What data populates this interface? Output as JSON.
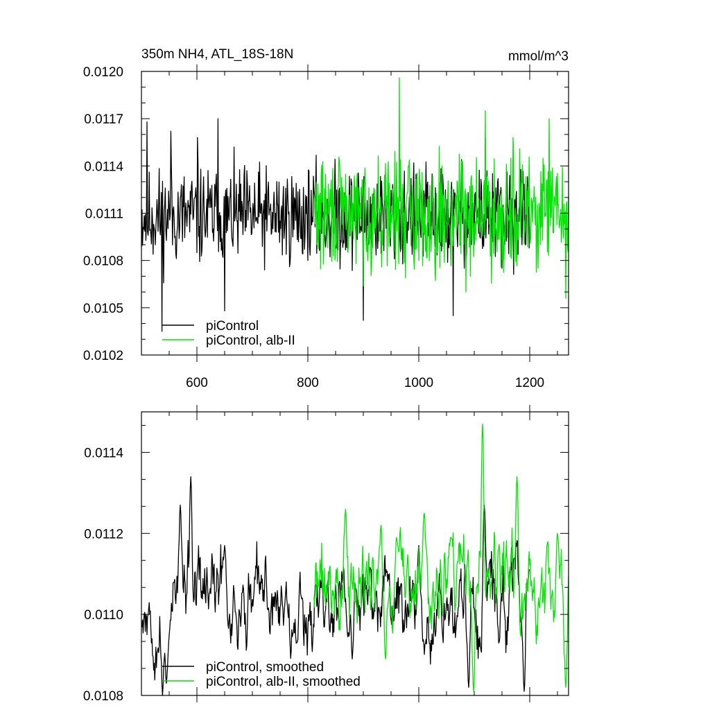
{
  "colors": {
    "series_a": "#000000",
    "series_b": "#00e600",
    "frame": "#000000"
  },
  "chart_data": [
    {
      "type": "line",
      "title": "350m NH4, ATL_18S-18N",
      "units": "mmol/m^3",
      "xlim": [
        500,
        1270
      ],
      "ylim": [
        0.0102,
        0.012
      ],
      "x_tick_values": [
        600,
        800,
        1000,
        1200
      ],
      "x_tick_labels": [
        "600",
        "800",
        "1000",
        "1200"
      ],
      "y_tick_values": [
        0.0102,
        0.0105,
        0.0108,
        0.0111,
        0.0114,
        0.0117,
        0.012
      ],
      "y_tick_labels": [
        "0.0102",
        "0.0105",
        "0.0108",
        "0.0111",
        "0.0114",
        "0.0117",
        "0.0120"
      ],
      "legend_position": "bottom-left",
      "series": [
        {
          "name": "piControl",
          "color": "#000000",
          "x_range": [
            500,
            1199
          ],
          "mean": 0.01108,
          "amplitude": 0.00022,
          "seed": 11,
          "spikes": [
            [
              510,
              0.01168
            ],
            [
              537,
              0.01035
            ],
            [
              553,
              0.01162
            ],
            [
              601,
              0.01158
            ],
            [
              638,
              0.0117
            ],
            [
              650,
              0.01048
            ],
            [
              800,
              0.0108
            ],
            [
              900,
              0.01042
            ],
            [
              1062,
              0.01045
            ],
            [
              1120,
              0.01158
            ],
            [
              1150,
              0.01075
            ]
          ]
        },
        {
          "name": "piControl, alb-II",
          "color": "#00e600",
          "x_range": [
            811,
            1270
          ],
          "mean": 0.0111,
          "amplitude": 0.00025,
          "seed": 29,
          "spikes": [
            [
              965,
              0.01196
            ],
            [
              1120,
              0.01175
            ],
            [
              1235,
              0.0117
            ],
            [
              1170,
              0.01158
            ],
            [
              1085,
              0.0106
            ],
            [
              1265,
              0.01056
            ]
          ]
        }
      ]
    },
    {
      "type": "line",
      "xlim": [
        500,
        1270
      ],
      "ylim": [
        0.0108,
        0.0115
      ],
      "y_tick_values": [
        0.0108,
        0.011,
        0.0112,
        0.0114
      ],
      "y_tick_labels": [
        "0.0108",
        "0.0110",
        "0.0112",
        "0.0114"
      ],
      "legend_position": "bottom-left",
      "series": [
        {
          "name": "piControl, smoothed",
          "color": "#000000",
          "x_range": [
            500,
            1199
          ],
          "mean": 0.01103,
          "amplitude": 0.00014,
          "seed": 53,
          "spikes": [
            [
              538,
              0.0108
            ],
            [
              545,
              0.01083
            ],
            [
              570,
              0.01127
            ],
            [
              589,
              0.01134
            ],
            [
              650,
              0.01117
            ],
            [
              1000,
              0.01117
            ],
            [
              1090,
              0.01082
            ],
            [
              1118,
              0.01127
            ],
            [
              1190,
              0.01081
            ],
            [
              780,
              0.01093
            ],
            [
              880,
              0.01089
            ]
          ]
        },
        {
          "name": "piControl, alb-II, smoothed",
          "color": "#00e600",
          "x_range": [
            811,
            1270
          ],
          "mean": 0.01106,
          "amplitude": 0.00015,
          "seed": 71,
          "spikes": [
            [
              868,
              0.01126
            ],
            [
              932,
              0.01122
            ],
            [
              960,
              0.01119
            ],
            [
              1010,
              0.01125
            ],
            [
              1058,
              0.01119
            ],
            [
              1115,
              0.01147
            ],
            [
              1177,
              0.01134
            ],
            [
              1250,
              0.0112
            ],
            [
              1099,
              0.01081
            ],
            [
              1265,
              0.01082
            ],
            [
              940,
              0.01089
            ]
          ]
        }
      ]
    }
  ]
}
